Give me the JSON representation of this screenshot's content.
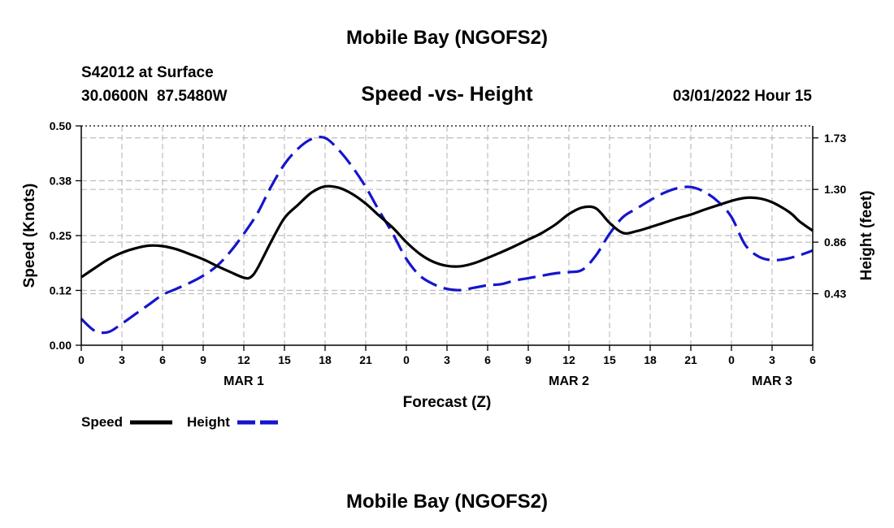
{
  "page_title": "Mobile Bay (NGOFS2)",
  "footer_title": "Mobile Bay (NGOFS2)",
  "station": {
    "name": "S42012 at Surface",
    "coords": "30.0600N  87.5480W",
    "datetime": "03/01/2022 Hour 15"
  },
  "chart_data": {
    "type": "line",
    "title": "Speed -vs- Height",
    "xlabel": "Forecast (Z)",
    "ylabel_left": "Speed (Knots)",
    "ylabel_right": "Height (feet)",
    "x_unit": "hours from 03/01/2022 00Z",
    "x_ticks": [
      0,
      3,
      6,
      9,
      12,
      15,
      18,
      21,
      24,
      27,
      30,
      33,
      36,
      39,
      42,
      45,
      48,
      51,
      54
    ],
    "x_tick_labels": [
      "0",
      "3",
      "6",
      "9",
      "12",
      "15",
      "18",
      "21",
      "0",
      "3",
      "6",
      "9",
      "12",
      "15",
      "18",
      "21",
      "0",
      "3",
      "6"
    ],
    "date_labels": [
      {
        "x": 12,
        "label": "MAR 1"
      },
      {
        "x": 36,
        "label": "MAR 2"
      },
      {
        "x": 51,
        "label": "MAR 3"
      }
    ],
    "xlim": [
      0,
      54
    ],
    "ylim_left": [
      0,
      0.5
    ],
    "y_ticks_left": [
      0.0,
      0.125,
      0.25,
      0.375,
      0.5
    ],
    "y_tick_labels_left": [
      "0.00",
      "0.12",
      "0.25",
      "0.38",
      "0.50"
    ],
    "ylim_right": [
      0,
      1.83
    ],
    "y_ticks_right": [
      0.43,
      0.86,
      1.3,
      1.73
    ],
    "y_tick_labels_right": [
      "0.43",
      "0.86",
      "1.30",
      "1.73"
    ],
    "grid": true,
    "series": [
      {
        "name": "Speed",
        "axis": "left",
        "color": "#000000",
        "style": "solid",
        "x": [
          0,
          1,
          2,
          3,
          4,
          5,
          6,
          7,
          8,
          9,
          10,
          11,
          12,
          12.5,
          13,
          14,
          15,
          16,
          17,
          18,
          19,
          20,
          21,
          22,
          23,
          24,
          25,
          26,
          27,
          28,
          29,
          30,
          31,
          32,
          33,
          33.5,
          34,
          35,
          36,
          37,
          38,
          39,
          40,
          41,
          42,
          43,
          44,
          45,
          46,
          47,
          48,
          49,
          50,
          51,
          52,
          52.5,
          53,
          54
        ],
        "values": [
          0.155,
          0.176,
          0.196,
          0.211,
          0.221,
          0.227,
          0.226,
          0.219,
          0.208,
          0.196,
          0.181,
          0.167,
          0.154,
          0.155,
          0.175,
          0.235,
          0.29,
          0.32,
          0.348,
          0.362,
          0.359,
          0.345,
          0.323,
          0.295,
          0.268,
          0.235,
          0.208,
          0.19,
          0.181,
          0.18,
          0.187,
          0.199,
          0.212,
          0.226,
          0.241,
          0.248,
          0.256,
          0.275,
          0.299,
          0.314,
          0.312,
          0.279,
          0.256,
          0.26,
          0.269,
          0.279,
          0.289,
          0.298,
          0.309,
          0.319,
          0.329,
          0.336,
          0.335,
          0.326,
          0.309,
          0.298,
          0.283,
          0.261
        ]
      },
      {
        "name": "Height",
        "axis": "right",
        "color": "#1515cc",
        "style": "dashed",
        "x": [
          0,
          1,
          2,
          3,
          4,
          5,
          6,
          7,
          8,
          9,
          10,
          11,
          12,
          13,
          14,
          15,
          16,
          17,
          18,
          19,
          20,
          21,
          22,
          23,
          24,
          25,
          26,
          27,
          28,
          29,
          30,
          31,
          32,
          33,
          34,
          35,
          36,
          37,
          38,
          39,
          40,
          41,
          42,
          43,
          44,
          45,
          46,
          47,
          48,
          49,
          50,
          51,
          52,
          53,
          54
        ],
        "values": [
          0.22,
          0.12,
          0.11,
          0.18,
          0.26,
          0.34,
          0.42,
          0.47,
          0.52,
          0.58,
          0.66,
          0.78,
          0.93,
          1.1,
          1.32,
          1.51,
          1.64,
          1.72,
          1.73,
          1.63,
          1.49,
          1.32,
          1.12,
          0.93,
          0.72,
          0.58,
          0.51,
          0.47,
          0.46,
          0.48,
          0.5,
          0.51,
          0.54,
          0.56,
          0.58,
          0.6,
          0.61,
          0.63,
          0.75,
          0.93,
          1.07,
          1.14,
          1.21,
          1.27,
          1.31,
          1.32,
          1.28,
          1.2,
          1.07,
          0.84,
          0.74,
          0.71,
          0.72,
          0.75,
          0.79
        ]
      }
    ]
  },
  "legend": [
    {
      "label": "Speed",
      "color": "#000000",
      "style": "solid"
    },
    {
      "label": "Height",
      "color": "#1515cc",
      "style": "dashed"
    }
  ]
}
